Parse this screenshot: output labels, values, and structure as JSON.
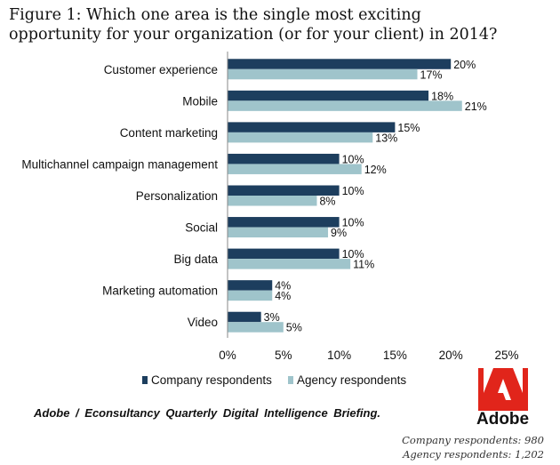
{
  "title": "Figure 1: Which one area is the single most exciting opportunity for your organization (or for your client) in 2014?",
  "chart_data": {
    "type": "bar",
    "orientation": "horizontal",
    "categories": [
      "Customer experience",
      "Mobile",
      "Content marketing",
      "Multichannel campaign management",
      "Personalization",
      "Social",
      "Big data",
      "Marketing automation",
      "Video"
    ],
    "series": [
      {
        "name": "Company respondents",
        "color": "#1d3e5e",
        "values": [
          20,
          18,
          15,
          10,
          10,
          10,
          10,
          4,
          3
        ],
        "labels": [
          "20%",
          "18%",
          "15%",
          "10%",
          "10%",
          "10%",
          "10%",
          "4%",
          "3%"
        ]
      },
      {
        "name": "Agency respondents",
        "color": "#9fc4cb",
        "values": [
          17,
          21,
          13,
          12,
          8,
          9,
          11,
          4,
          5
        ],
        "labels": [
          "17%",
          "21%",
          "13%",
          "12%",
          "8%",
          "9%",
          "11%",
          "4%",
          "5%"
        ]
      }
    ],
    "xlim": [
      0,
      25
    ],
    "ticks": [
      0,
      5,
      10,
      15,
      20,
      25
    ],
    "tick_labels": [
      "0%",
      "5%",
      "10%",
      "15%",
      "20%",
      "25%"
    ],
    "grid": false,
    "legend_position": "bottom-left"
  },
  "legend": {
    "company": "Company respondents",
    "agency": "Agency respondents"
  },
  "source": "Adobe / Econsultancy Quarterly Digital Intelligence Briefing.",
  "logo": {
    "text": "Adobe",
    "color": "#e1251b"
  },
  "footnotes": {
    "company": "Company respondents: 980",
    "agency": "Agency respondents: 1,202"
  }
}
